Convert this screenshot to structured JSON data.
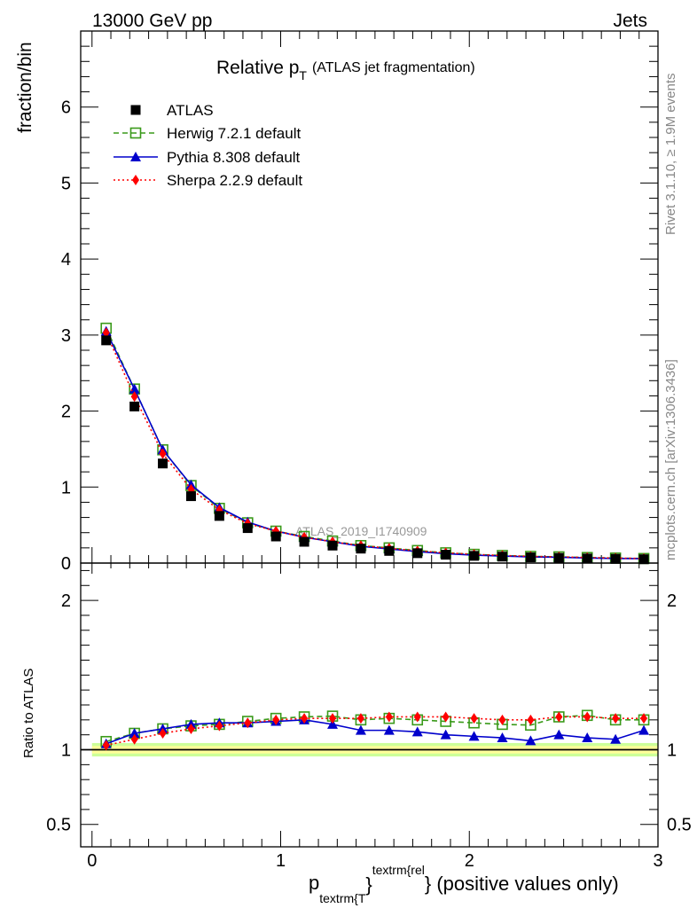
{
  "header": {
    "left": "13000 GeV pp",
    "right": "Jets"
  },
  "side_labels": {
    "rivet": "Rivet 3.1.10, ≥ 1.9M events",
    "mcplots": "mcplots.cern.ch [arXiv:1306.3436]"
  },
  "watermark": "ATLAS_2019_I1740909",
  "axes": {
    "main_ylabel": "fraction/bin",
    "ratio_ylabel": "Ratio to ATLAS",
    "xlabel_main": "p",
    "xlabel_sub": "textrm{T",
    "xlabel_brace_close": "}",
    "xlabel_sup": "textrm{rel",
    "xlabel_rest": "} (positive values only)"
  },
  "title": {
    "main": "Relative p",
    "sub": "T",
    "rest": "(ATLAS jet fragmentation)"
  },
  "chart_data": {
    "type": "line",
    "xlim": [
      -0.06,
      3.0
    ],
    "ylim_main": [
      0,
      7.0
    ],
    "ylim_ratio": [
      0.35,
      2.25
    ],
    "x_ticks": [
      {
        "v": 0,
        "label": "0"
      },
      {
        "v": 1,
        "label": "1"
      },
      {
        "v": 2,
        "label": "2"
      },
      {
        "v": 3,
        "label": "3"
      }
    ],
    "y_ticks_main": [
      {
        "v": 0,
        "label": "0"
      },
      {
        "v": 1,
        "label": "1"
      },
      {
        "v": 2,
        "label": "2"
      },
      {
        "v": 3,
        "label": "3"
      },
      {
        "v": 4,
        "label": "4"
      },
      {
        "v": 5,
        "label": "5"
      },
      {
        "v": 6,
        "label": "6"
      }
    ],
    "y_ticks_ratio": [
      {
        "v": 0.5,
        "label": "0.5"
      },
      {
        "v": 1,
        "label": "1"
      },
      {
        "v": 2,
        "label": "2"
      }
    ],
    "x": [
      0.075,
      0.225,
      0.375,
      0.525,
      0.675,
      0.825,
      0.975,
      1.125,
      1.275,
      1.425,
      1.575,
      1.725,
      1.875,
      2.025,
      2.175,
      2.325,
      2.475,
      2.625,
      2.775,
      2.925
    ],
    "legend": {
      "placement": "top-left"
    },
    "series": [
      {
        "name": "ATLAS",
        "color": "#000000",
        "marker": "square-filled",
        "line": "none",
        "values": [
          2.93,
          2.06,
          1.31,
          0.88,
          0.62,
          0.46,
          0.35,
          0.28,
          0.23,
          0.19,
          0.16,
          0.13,
          0.11,
          0.095,
          0.085,
          0.075,
          0.068,
          0.06,
          0.055,
          0.05
        ]
      },
      {
        "name": "Herwig 7.2.1 default",
        "color": "#3a9a1a",
        "marker": "square-open",
        "line": "dashed",
        "values": [
          3.09,
          2.29,
          1.49,
          1.02,
          0.72,
          0.53,
          0.42,
          0.35,
          0.29,
          0.23,
          0.2,
          0.165,
          0.135,
          0.115,
          0.1,
          0.088,
          0.082,
          0.073,
          0.066,
          0.06
        ],
        "ratio": [
          1.055,
          1.11,
          1.14,
          1.16,
          1.17,
          1.19,
          1.21,
          1.22,
          1.225,
          1.2,
          1.21,
          1.2,
          1.19,
          1.18,
          1.17,
          1.165,
          1.22,
          1.23,
          1.2,
          1.2
        ]
      },
      {
        "name": "Pythia 8.308 default",
        "color": "#0000cc",
        "marker": "triangle-filled",
        "line": "solid",
        "values": [
          3.05,
          2.29,
          1.49,
          1.03,
          0.73,
          0.54,
          0.42,
          0.34,
          0.28,
          0.22,
          0.186,
          0.151,
          0.123,
          0.104,
          0.093,
          0.081,
          0.077,
          0.066,
          0.06,
          0.058
        ],
        "ratio": [
          1.04,
          1.11,
          1.14,
          1.17,
          1.18,
          1.18,
          1.19,
          1.2,
          1.17,
          1.13,
          1.13,
          1.12,
          1.1,
          1.09,
          1.08,
          1.06,
          1.1,
          1.08,
          1.07,
          1.13
        ]
      },
      {
        "name": "Sherpa 2.2.9 default",
        "color": "#ff0000",
        "marker": "diamond-filled",
        "line": "dotted",
        "values": [
          3.03,
          2.19,
          1.44,
          0.97,
          0.7,
          0.52,
          0.42,
          0.34,
          0.28,
          0.23,
          0.195,
          0.16,
          0.135,
          0.115,
          0.1,
          0.088,
          0.082,
          0.073,
          0.066,
          0.06
        ],
        "ratio": [
          1.03,
          1.07,
          1.11,
          1.14,
          1.16,
          1.18,
          1.2,
          1.21,
          1.21,
          1.21,
          1.22,
          1.22,
          1.22,
          1.21,
          1.2,
          1.2,
          1.22,
          1.22,
          1.21,
          1.21
        ]
      }
    ],
    "ratio_band": {
      "inner_color": "#ffff99",
      "outer_color": "#ccff99",
      "inner_halfwidth": 0.025,
      "outer_halfwidth": 0.045
    }
  }
}
